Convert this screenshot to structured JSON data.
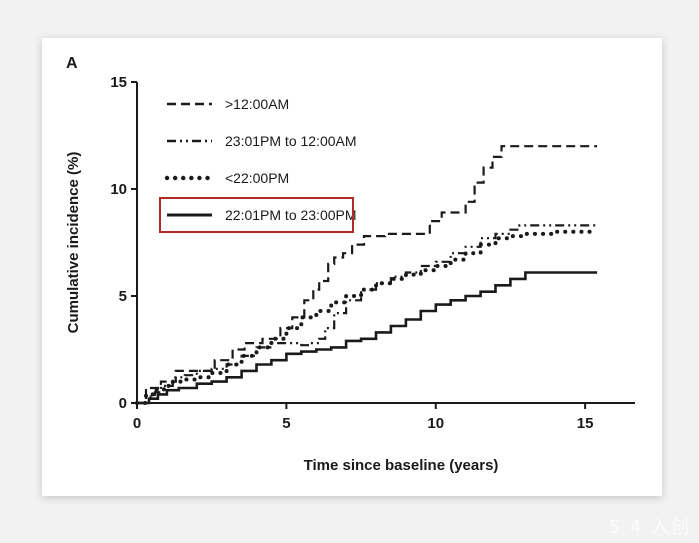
{
  "panel_label": "A",
  "watermark": "5 4 入创",
  "colors": {
    "line": "#1a1a1a",
    "highlight_box": "#b02a2a",
    "background": "#ffffff"
  },
  "chart_data": {
    "type": "line",
    "title": "",
    "xlabel": "Time since baseline (years)",
    "ylabel": "Cumulative incidence (%)",
    "xlim": [
      0,
      16
    ],
    "ylim": [
      0,
      15
    ],
    "xticks": [
      0,
      5,
      10,
      15
    ],
    "yticks": [
      0,
      5,
      10,
      15
    ],
    "grid": false,
    "legend_position": "top-left",
    "highlighted_series": "22:01PM to 23:00PM",
    "series": [
      {
        "name": ">12:00AM",
        "dash": "dashed",
        "x": [
          0,
          0.3,
          0.5,
          0.8,
          1.0,
          1.3,
          1.5,
          2.0,
          2.6,
          3.2,
          3.6,
          4.2,
          4.8,
          5.2,
          5.6,
          5.9,
          6.1,
          6.4,
          6.6,
          6.9,
          7.2,
          7.6,
          7.8,
          8.3,
          9.0,
          9.5,
          9.8,
          10.2,
          10.6,
          11.0,
          11.3,
          11.6,
          11.9,
          12.2,
          12.5,
          13.0,
          14.0,
          15.0,
          15.4
        ],
        "y": [
          0,
          0.7,
          0.7,
          1.0,
          1.0,
          1.5,
          1.5,
          1.5,
          2.0,
          2.5,
          2.8,
          3.0,
          3.5,
          4.0,
          4.8,
          5.3,
          5.7,
          6.5,
          6.8,
          7.0,
          7.4,
          7.8,
          7.8,
          7.9,
          7.9,
          7.9,
          8.5,
          8.9,
          8.9,
          9.4,
          10.3,
          11.0,
          11.5,
          12.0,
          12.0,
          12.0,
          12.0,
          12.0,
          12.0
        ]
      },
      {
        "name": "23:01PM to 12:00AM",
        "dash": "dash-dot",
        "x": [
          0,
          0.3,
          0.6,
          0.8,
          1.2,
          1.6,
          2.0,
          2.5,
          3.0,
          3.5,
          4.0,
          4.5,
          5.0,
          5.5,
          5.8,
          6.1,
          6.3,
          6.6,
          7.0,
          7.5,
          8.0,
          8.5,
          9.0,
          9.5,
          10.0,
          10.5,
          11.0,
          11.5,
          12.0,
          12.5,
          12.8,
          13.2,
          14.0,
          15.0,
          15.4
        ],
        "y": [
          0,
          0.3,
          0.5,
          0.8,
          1.2,
          1.3,
          1.5,
          1.6,
          1.8,
          2.2,
          2.6,
          2.8,
          2.8,
          2.7,
          2.8,
          3.0,
          3.5,
          4.2,
          4.8,
          5.3,
          5.6,
          5.9,
          6.1,
          6.4,
          6.6,
          7.0,
          7.3,
          7.7,
          7.9,
          8.1,
          8.3,
          8.3,
          8.3,
          8.3,
          8.3
        ]
      },
      {
        "name": "<22:00PM",
        "dash": "dotted",
        "x": [
          0,
          0.3,
          0.6,
          0.9,
          1.2,
          1.6,
          2.0,
          2.5,
          3.0,
          3.5,
          4.0,
          4.5,
          5.0,
          5.5,
          6.0,
          6.5,
          7.0,
          7.5,
          8.0,
          8.5,
          9.0,
          9.5,
          10.0,
          10.5,
          11.0,
          11.5,
          12.0,
          12.5,
          13.0,
          14.0,
          15.0,
          15.4
        ],
        "y": [
          0,
          0.4,
          0.6,
          0.8,
          1.0,
          1.1,
          1.2,
          1.4,
          1.8,
          2.2,
          2.6,
          3.0,
          3.5,
          4.0,
          4.3,
          4.7,
          5.0,
          5.3,
          5.6,
          5.8,
          6.0,
          6.2,
          6.4,
          6.7,
          7.0,
          7.4,
          7.7,
          7.8,
          7.9,
          8.0,
          8.0,
          8.0
        ]
      },
      {
        "name": "22:01PM to 23:00PM",
        "dash": "solid",
        "x": [
          0,
          0.4,
          0.7,
          1.0,
          1.4,
          2.0,
          2.5,
          3.0,
          3.5,
          4.0,
          4.5,
          5.0,
          5.5,
          6.0,
          6.5,
          7.0,
          7.5,
          8.0,
          8.5,
          9.0,
          9.5,
          10.0,
          10.5,
          11.0,
          11.5,
          12.0,
          12.5,
          13.0,
          14.0,
          15.0,
          15.4
        ],
        "y": [
          0,
          0.2,
          0.4,
          0.6,
          0.7,
          0.9,
          1.0,
          1.2,
          1.5,
          1.8,
          2.0,
          2.3,
          2.4,
          2.5,
          2.6,
          2.9,
          3.0,
          3.3,
          3.6,
          3.9,
          4.3,
          4.6,
          4.8,
          5.0,
          5.2,
          5.5,
          5.8,
          6.1,
          6.1,
          6.1,
          6.1
        ]
      }
    ]
  }
}
